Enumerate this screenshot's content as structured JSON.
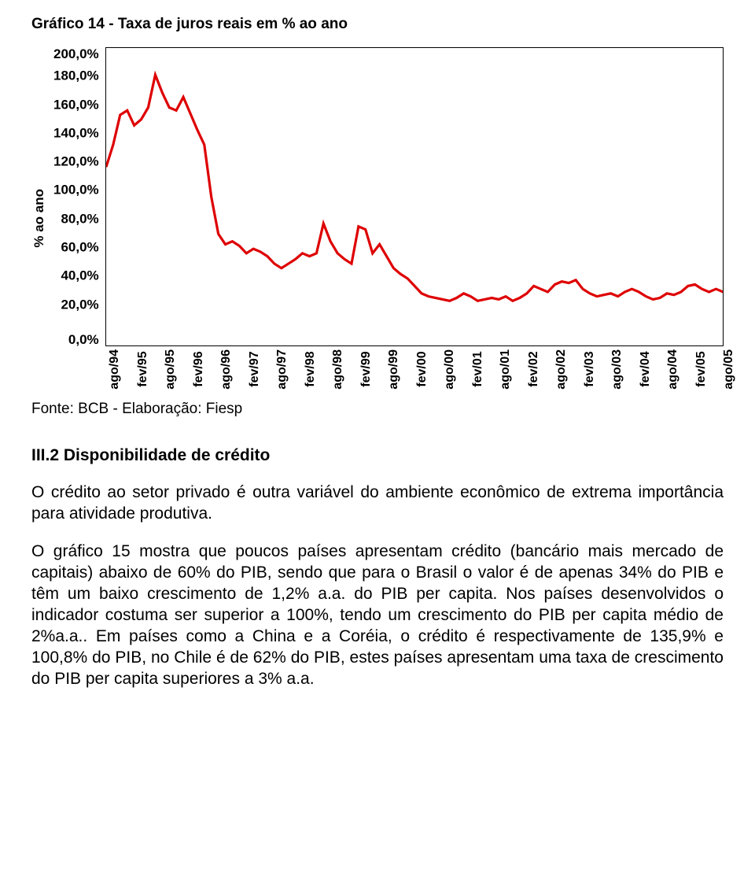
{
  "chart": {
    "type": "line",
    "title": "Gráfico 14 - Taxa de juros reais em % ao ano",
    "ylabel": "% ao ano",
    "ylim": [
      0,
      200
    ],
    "ytick_step": 20,
    "yticks": [
      "200,0%",
      "180,0%",
      "160,0%",
      "140,0%",
      "120,0%",
      "100,0%",
      "80,0%",
      "60,0%",
      "40,0%",
      "20,0%",
      "0,0%"
    ],
    "xticks": [
      "ago/94",
      "fev/95",
      "ago/95",
      "fev/96",
      "ago/96",
      "fev/97",
      "ago/97",
      "fev/98",
      "ago/98",
      "fev/99",
      "ago/99",
      "fev/00",
      "ago/00",
      "fev/01",
      "ago/01",
      "fev/02",
      "ago/02",
      "fev/03",
      "ago/03",
      "fev/04",
      "ago/04",
      "fev/05",
      "ago/05"
    ],
    "line_color": "#de0000",
    "line_width": 3.2,
    "border_color": "#000000",
    "background_color": "#ffffff",
    "label_fontsize": 17,
    "title_fontsize": 19,
    "values": [
      120,
      135,
      155,
      158,
      148,
      152,
      160,
      182,
      170,
      160,
      158,
      167,
      156,
      145,
      135,
      100,
      75,
      68,
      70,
      67,
      62,
      65,
      63,
      60,
      55,
      52,
      55,
      58,
      62,
      60,
      62,
      82,
      70,
      62,
      58,
      55,
      80,
      78,
      62,
      68,
      60,
      52,
      48,
      45,
      40,
      35,
      33,
      32,
      31,
      30,
      32,
      35,
      33,
      30,
      31,
      32,
      31,
      33,
      30,
      32,
      35,
      40,
      38,
      36,
      41,
      43,
      42,
      44,
      38,
      35,
      33,
      34,
      35,
      33,
      36,
      38,
      36,
      33,
      31,
      32,
      35,
      34,
      36,
      40,
      41,
      38,
      36,
      38,
      36
    ]
  },
  "source_text": "Fonte: BCB - Elaboração: Fiesp",
  "section": {
    "title": "III.2 Disponibilidade de crédito",
    "para1": "O crédito ao setor privado é outra variável do ambiente econômico de extrema importância para atividade produtiva.",
    "para2": "O gráfico 15 mostra que poucos países apresentam crédito (bancário mais mercado de capitais) abaixo de 60% do PIB, sendo que para o Brasil o valor é de apenas 34% do PIB e têm um baixo crescimento de 1,2% a.a. do PIB per capita. Nos países desenvolvidos o indicador costuma ser superior a 100%, tendo um crescimento do PIB per capita médio de 2%a.a.. Em países como a China e a Coréia, o crédito é respectivamente de 135,9% e 100,8% do PIB, no Chile é de 62% do PIB, estes países apresentam uma taxa de crescimento do PIB per capita superiores a 3% a.a."
  }
}
